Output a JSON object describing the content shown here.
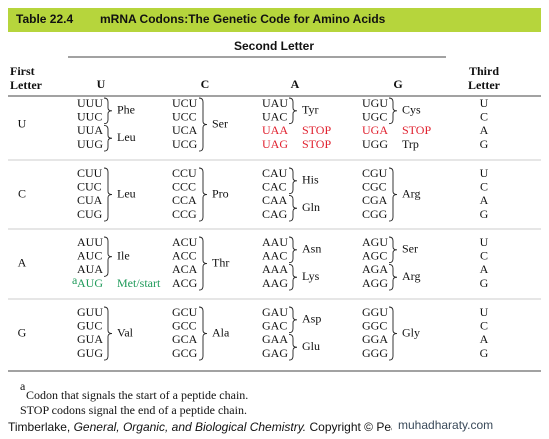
{
  "header": {
    "label": "Table 22.4",
    "title": "mRNA Codons:The Genetic Code for Amino Acids"
  },
  "second_letter": "Second Letter",
  "first_letter": [
    "First",
    "Letter"
  ],
  "third_letter": [
    "Third",
    "Letter"
  ],
  "columns": [
    "U",
    "C",
    "A",
    "G"
  ],
  "rows": [
    {
      "first": "U",
      "third": [
        "U",
        "C",
        "A",
        "G"
      ],
      "cells": [
        [
          {
            "codons": [
              "UUU",
              "UUC"
            ],
            "amino": "Phe"
          },
          {
            "codons": [
              "UUA",
              "UUG"
            ],
            "amino": "Leu"
          }
        ],
        [
          {
            "codons": [
              "UCU",
              "UCC",
              "UCA",
              "UCG"
            ],
            "amino": "Ser"
          }
        ],
        [
          {
            "codons": [
              "UAU",
              "UAC"
            ],
            "amino": "Tyr"
          },
          {
            "codons": [
              "UAA"
            ],
            "amino": "STOP",
            "color": "#e0202e"
          },
          {
            "codons": [
              "UAG"
            ],
            "amino": "STOP",
            "color": "#e0202e"
          }
        ],
        [
          {
            "codons": [
              "UGU",
              "UGC"
            ],
            "amino": "Cys"
          },
          {
            "codons": [
              "UGA"
            ],
            "amino": "STOP",
            "color": "#e0202e"
          },
          {
            "codons": [
              "UGG"
            ],
            "amino": "Trp"
          }
        ]
      ]
    },
    {
      "first": "C",
      "third": [
        "U",
        "C",
        "A",
        "G"
      ],
      "cells": [
        [
          {
            "codons": [
              "CUU",
              "CUC",
              "CUA",
              "CUG"
            ],
            "amino": "Leu"
          }
        ],
        [
          {
            "codons": [
              "CCU",
              "CCC",
              "CCA",
              "CCG"
            ],
            "amino": "Pro"
          }
        ],
        [
          {
            "codons": [
              "CAU",
              "CAC"
            ],
            "amino": "His"
          },
          {
            "codons": [
              "CAA",
              "CAG"
            ],
            "amino": "Gln"
          }
        ],
        [
          {
            "codons": [
              "CGU",
              "CGC",
              "CGA",
              "CGG"
            ],
            "amino": "Arg"
          }
        ]
      ]
    },
    {
      "first": "A",
      "third": [
        "U",
        "C",
        "A",
        "G"
      ],
      "cells": [
        [
          {
            "codons": [
              "AUU",
              "AUC",
              "AUA"
            ],
            "amino": "Ile"
          },
          {
            "codons": [
              "AUG"
            ],
            "amino": "Met/start",
            "marker": "a",
            "color": "#1f9a5a"
          }
        ],
        [
          {
            "codons": [
              "ACU",
              "ACC",
              "ACA",
              "ACG"
            ],
            "amino": "Thr"
          }
        ],
        [
          {
            "codons": [
              "AAU",
              "AAC"
            ],
            "amino": "Asn"
          },
          {
            "codons": [
              "AAA",
              "AAG"
            ],
            "amino": "Lys"
          }
        ],
        [
          {
            "codons": [
              "AGU",
              "AGC"
            ],
            "amino": "Ser"
          },
          {
            "codons": [
              "AGA",
              "AGG"
            ],
            "amino": "Arg"
          }
        ]
      ]
    },
    {
      "first": "G",
      "third": [
        "U",
        "C",
        "A",
        "G"
      ],
      "cells": [
        [
          {
            "codons": [
              "GUU",
              "GUC",
              "GUA",
              "GUG"
            ],
            "amino": "Val"
          }
        ],
        [
          {
            "codons": [
              "GCU",
              "GCC",
              "GCA",
              "GCG"
            ],
            "amino": "Ala"
          }
        ],
        [
          {
            "codons": [
              "GAU",
              "GAC"
            ],
            "amino": "Asp"
          },
          {
            "codons": [
              "GAA",
              "GAG"
            ],
            "amino": "Glu"
          }
        ],
        [
          {
            "codons": [
              "GGU",
              "GGC",
              "GGA",
              "GGG"
            ],
            "amino": "Gly"
          }
        ]
      ]
    }
  ],
  "footnotes": [
    {
      "marker": "a",
      "text": "Codon that signals the start of a peptide chain."
    },
    {
      "text": "STOP codons signal the end of a peptide chain."
    }
  ],
  "footer": {
    "author": "Timberlake,",
    "book": "General, Organic, and Biological Chemistry.",
    "rest": "Copyright © Pearson Education Inc., p"
  },
  "watermark": "muhadharaty.com"
}
